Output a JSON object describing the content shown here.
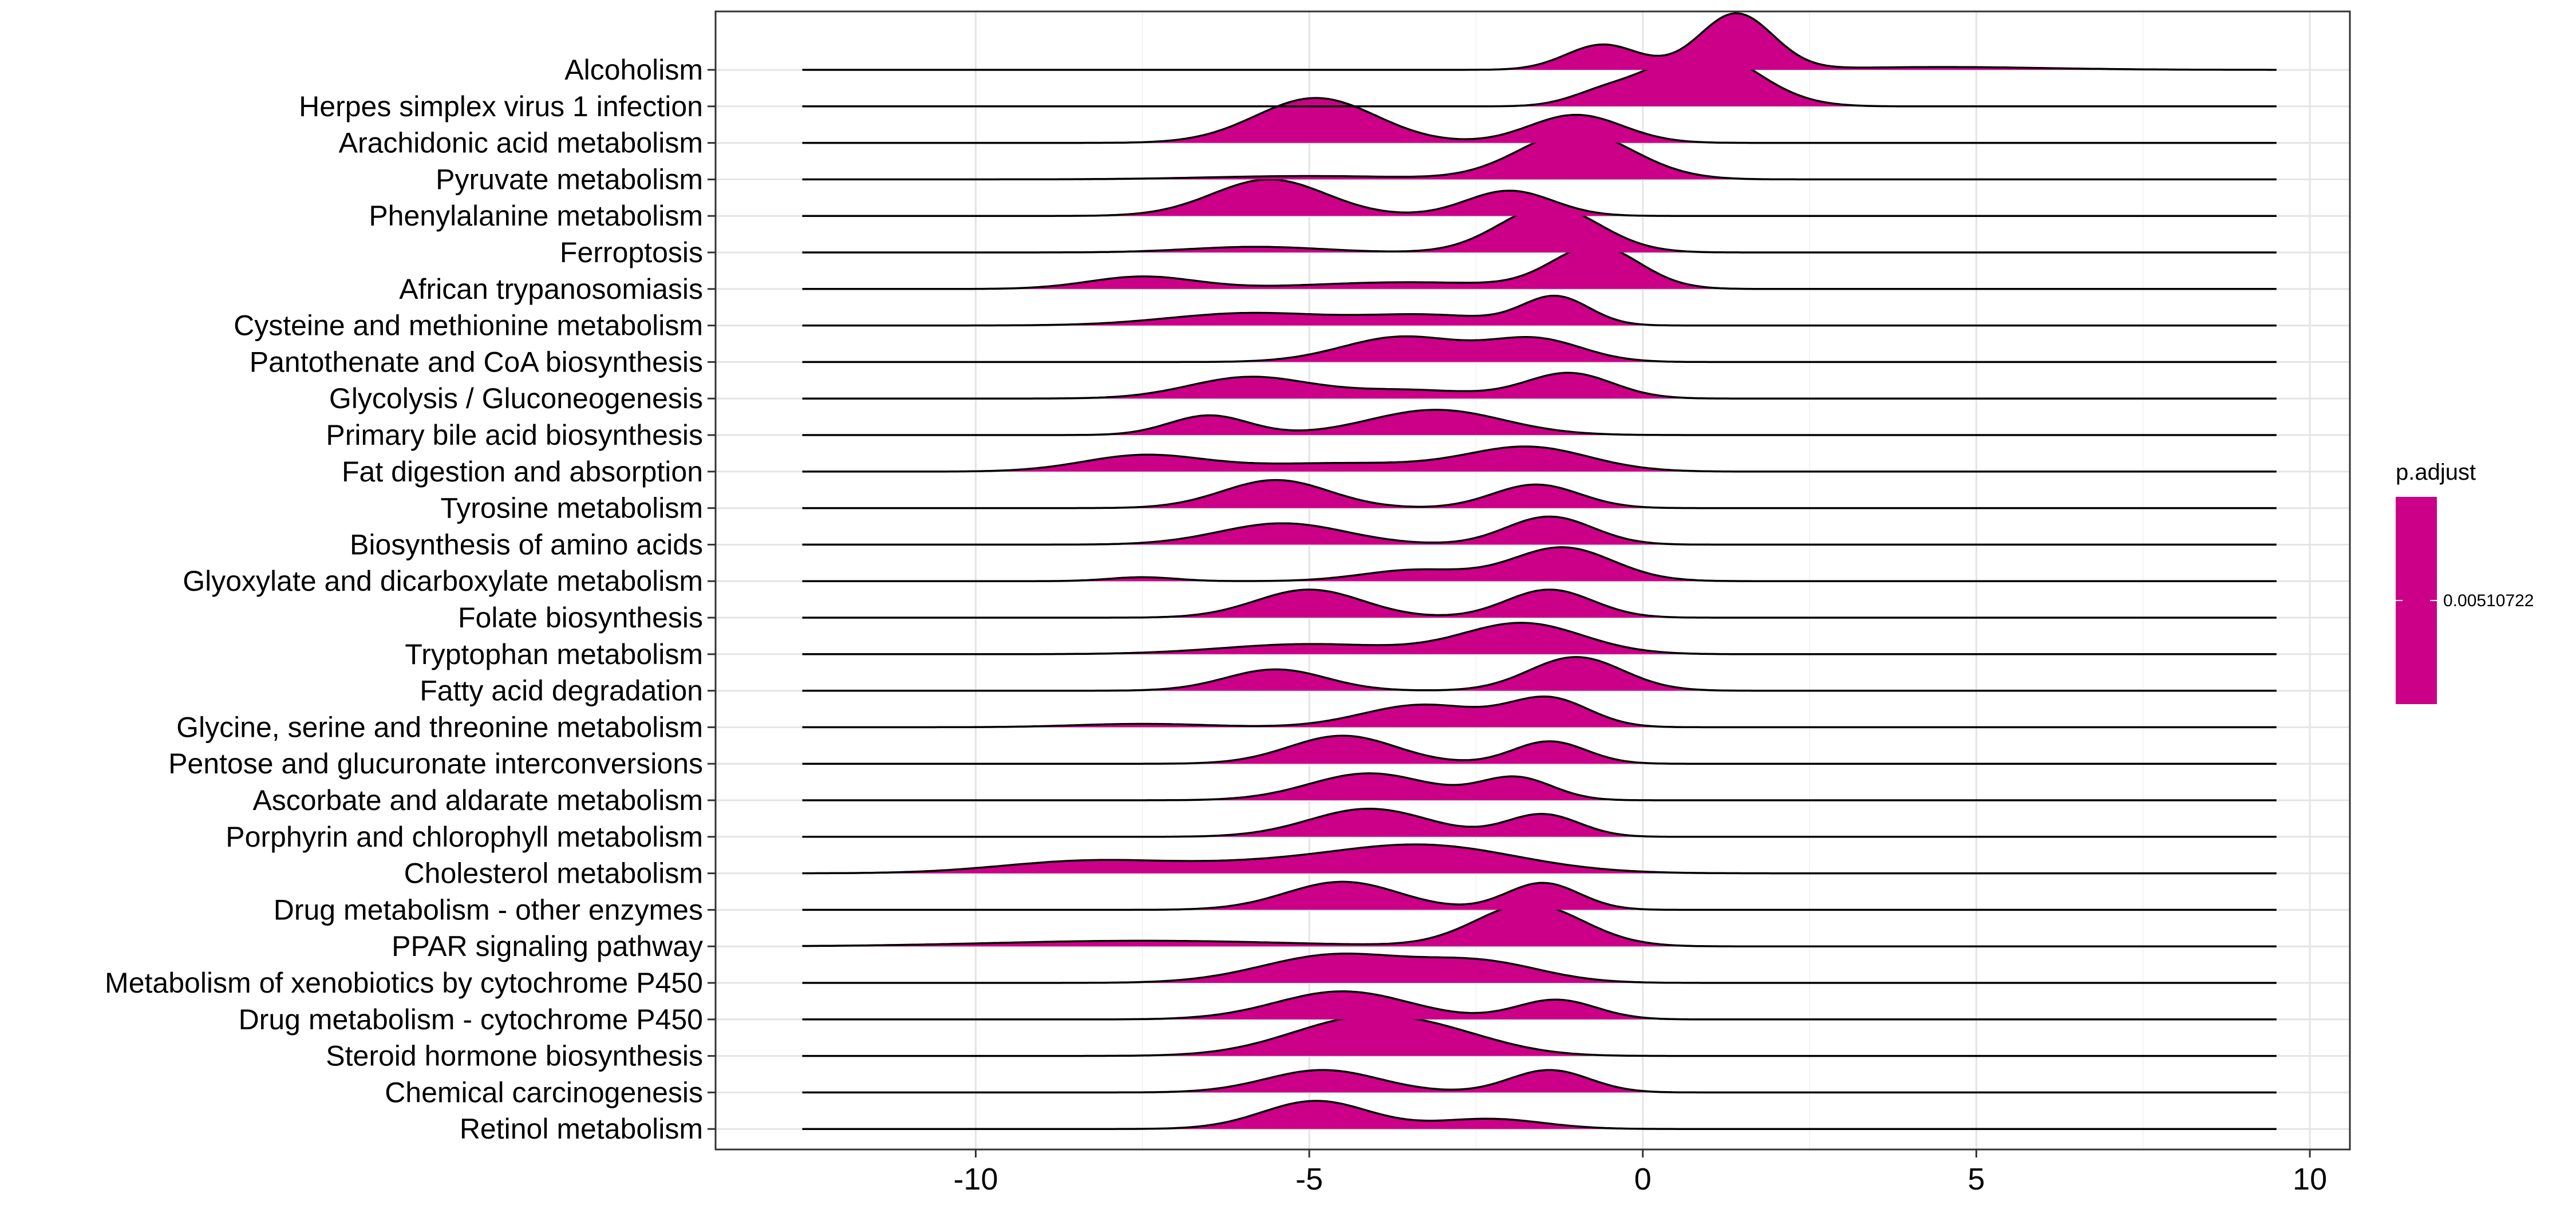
{
  "chart_data": {
    "type": "ridgeline",
    "title": "",
    "xlabel": "",
    "ylabel": "",
    "xlim": [
      -13.9,
      10.6
    ],
    "x_ticks": [
      -10,
      -5,
      0,
      5,
      10
    ],
    "x_tick_labels": [
      "-10",
      "-5",
      "0",
      "5",
      "10"
    ],
    "grid": true,
    "fill_color": "#CC0088",
    "legend": {
      "title": "p.adjust",
      "placement": "right",
      "color": "#CC0088",
      "ticks": [
        0.00510722
      ],
      "tick_labels": [
        "0.00510722"
      ]
    },
    "series": [
      {
        "name": "Alcoholism",
        "range": [
          -12.6,
          9.5
        ],
        "peaks": [
          [
            1.4,
            0.55,
            1.0
          ],
          [
            -0.6,
            0.55,
            0.45
          ],
          [
            4.5,
            1.6,
            0.05
          ]
        ]
      },
      {
        "name": "Herpes simplex virus 1 infection",
        "range": [
          -12.6,
          9.5
        ],
        "peaks": [
          [
            0.9,
            0.8,
            1.0
          ],
          [
            -0.6,
            0.5,
            0.2
          ]
        ]
      },
      {
        "name": "Arachidonic acid metabolism",
        "range": [
          -12.6,
          9.5
        ],
        "peaks": [
          [
            -4.9,
            0.9,
            0.8
          ],
          [
            -1.0,
            0.7,
            0.5
          ]
        ]
      },
      {
        "name": "Pyruvate metabolism",
        "range": [
          -12.6,
          9.5
        ],
        "peaks": [
          [
            -1.0,
            0.85,
            0.85
          ],
          [
            -5.0,
            1.5,
            0.06
          ]
        ]
      },
      {
        "name": "Phenylalanine metabolism",
        "range": [
          -12.6,
          9.5
        ],
        "peaks": [
          [
            -5.6,
            0.85,
            0.65
          ],
          [
            -2.0,
            0.65,
            0.45
          ]
        ]
      },
      {
        "name": "Ferroptosis",
        "range": [
          -12.6,
          9.5
        ],
        "peaks": [
          [
            -1.4,
            0.75,
            0.82
          ],
          [
            -5.8,
            1.0,
            0.1
          ]
        ]
      },
      {
        "name": "African trypanosomiasis",
        "range": [
          -12.6,
          9.5
        ],
        "peaks": [
          [
            -0.7,
            0.65,
            0.75
          ],
          [
            -7.5,
            0.8,
            0.22
          ],
          [
            -3.5,
            1.5,
            0.12
          ]
        ]
      },
      {
        "name": "Cysteine and methionine metabolism",
        "range": [
          -12.6,
          9.5
        ],
        "peaks": [
          [
            -1.3,
            0.5,
            0.5
          ],
          [
            -5.9,
            1.2,
            0.22
          ],
          [
            -3.2,
            1.0,
            0.18
          ]
        ]
      },
      {
        "name": "Pantothenate and CoA biosynthesis",
        "range": [
          -12.6,
          9.5
        ],
        "peaks": [
          [
            -3.6,
            0.9,
            0.45
          ],
          [
            -1.6,
            0.7,
            0.4
          ]
        ]
      },
      {
        "name": "Glycolysis / Gluconeogenesis",
        "range": [
          -12.6,
          9.5
        ],
        "peaks": [
          [
            -5.9,
            0.9,
            0.38
          ],
          [
            -1.1,
            0.65,
            0.45
          ],
          [
            -3.5,
            1.0,
            0.15
          ]
        ]
      },
      {
        "name": "Primary bile acid biosynthesis",
        "range": [
          -12.6,
          9.5
        ],
        "peaks": [
          [
            -6.5,
            0.6,
            0.35
          ],
          [
            -3.1,
            1.0,
            0.45
          ]
        ]
      },
      {
        "name": "Fat digestion and absorption",
        "range": [
          -12.6,
          9.5
        ],
        "peaks": [
          [
            -7.5,
            0.9,
            0.28
          ],
          [
            -1.7,
            0.9,
            0.42
          ],
          [
            -4.5,
            1.5,
            0.15
          ]
        ]
      },
      {
        "name": "Tyrosine metabolism",
        "range": [
          -12.6,
          9.5
        ],
        "peaks": [
          [
            -5.5,
            0.8,
            0.5
          ],
          [
            -1.6,
            0.65,
            0.42
          ]
        ]
      },
      {
        "name": "Biosynthesis of amino acids",
        "range": [
          -12.6,
          9.5
        ],
        "peaks": [
          [
            -5.4,
            0.95,
            0.38
          ],
          [
            -1.4,
            0.65,
            0.5
          ]
        ]
      },
      {
        "name": "Glyoxylate and dicarboxylate metabolism",
        "range": [
          -12.6,
          9.5
        ],
        "peaks": [
          [
            -1.2,
            0.75,
            0.6
          ],
          [
            -3.4,
            0.8,
            0.2
          ],
          [
            -7.5,
            0.5,
            0.07
          ]
        ]
      },
      {
        "name": "Folate biosynthesis",
        "range": [
          -12.6,
          9.5
        ],
        "peaks": [
          [
            -5.0,
            0.8,
            0.5
          ],
          [
            -1.4,
            0.65,
            0.5
          ]
        ]
      },
      {
        "name": "Tryptophan metabolism",
        "range": [
          -12.6,
          9.5
        ],
        "peaks": [
          [
            -1.8,
            0.9,
            0.55
          ],
          [
            -5.0,
            1.3,
            0.18
          ]
        ]
      },
      {
        "name": "Fatty acid degradation",
        "range": [
          -12.6,
          9.5
        ],
        "peaks": [
          [
            -5.5,
            0.75,
            0.38
          ],
          [
            -1.0,
            0.7,
            0.6
          ]
        ]
      },
      {
        "name": "Glycine, serine and threonine metabolism",
        "range": [
          -12.6,
          9.5
        ],
        "peaks": [
          [
            -3.3,
            0.9,
            0.4
          ],
          [
            -1.4,
            0.6,
            0.5
          ],
          [
            -7.5,
            1.0,
            0.06
          ]
        ]
      },
      {
        "name": "Pentose and glucuronate interconversions",
        "range": [
          -12.6,
          9.5
        ],
        "peaks": [
          [
            -4.5,
            0.8,
            0.5
          ],
          [
            -1.4,
            0.55,
            0.4
          ]
        ]
      },
      {
        "name": "Ascorbate and aldarate metabolism",
        "range": [
          -12.6,
          9.5
        ],
        "peaks": [
          [
            -4.1,
            0.9,
            0.48
          ],
          [
            -1.9,
            0.55,
            0.4
          ]
        ]
      },
      {
        "name": "Porphyrin and chlorophyll metabolism",
        "range": [
          -12.6,
          9.5
        ],
        "peaks": [
          [
            -4.1,
            0.9,
            0.5
          ],
          [
            -1.5,
            0.55,
            0.4
          ]
        ]
      },
      {
        "name": "Cholesterol metabolism",
        "range": [
          -12.6,
          9.5
        ],
        "peaks": [
          [
            -3.3,
            1.4,
            0.5
          ],
          [
            -8.3,
            1.3,
            0.22
          ],
          [
            -5.8,
            1.2,
            0.12
          ]
        ]
      },
      {
        "name": "Drug metabolism - other enzymes",
        "range": [
          -12.6,
          9.5
        ],
        "peaks": [
          [
            -4.5,
            0.85,
            0.5
          ],
          [
            -1.5,
            0.55,
            0.48
          ]
        ]
      },
      {
        "name": "PPAR signaling pathway",
        "range": [
          -12.6,
          9.5
        ],
        "peaks": [
          [
            -1.7,
            0.8,
            0.75
          ],
          [
            -7.5,
            2.2,
            0.1
          ]
        ]
      },
      {
        "name": "Metabolism of xenobiotics by cytochrome P450",
        "range": [
          -12.6,
          9.5
        ],
        "peaks": [
          [
            -4.6,
            1.1,
            0.5
          ],
          [
            -2.4,
            0.9,
            0.35
          ]
        ]
      },
      {
        "name": "Drug metabolism - cytochrome P450",
        "range": [
          -12.6,
          9.5
        ],
        "peaks": [
          [
            -4.5,
            1.0,
            0.5
          ],
          [
            -1.3,
            0.6,
            0.35
          ]
        ]
      },
      {
        "name": "Steroid hormone biosynthesis",
        "range": [
          -12.6,
          9.5
        ],
        "peaks": [
          [
            -4.2,
            1.1,
            0.65
          ],
          [
            -2.8,
            0.9,
            0.2
          ]
        ]
      },
      {
        "name": "Chemical carcinogenesis",
        "range": [
          -12.6,
          9.5
        ],
        "peaks": [
          [
            -4.8,
            0.85,
            0.4
          ],
          [
            -1.4,
            0.6,
            0.4
          ]
        ]
      },
      {
        "name": "Retinol metabolism",
        "range": [
          -12.6,
          9.5
        ],
        "peaks": [
          [
            -4.9,
            0.8,
            0.5
          ],
          [
            -2.3,
            0.8,
            0.18
          ]
        ]
      }
    ]
  }
}
